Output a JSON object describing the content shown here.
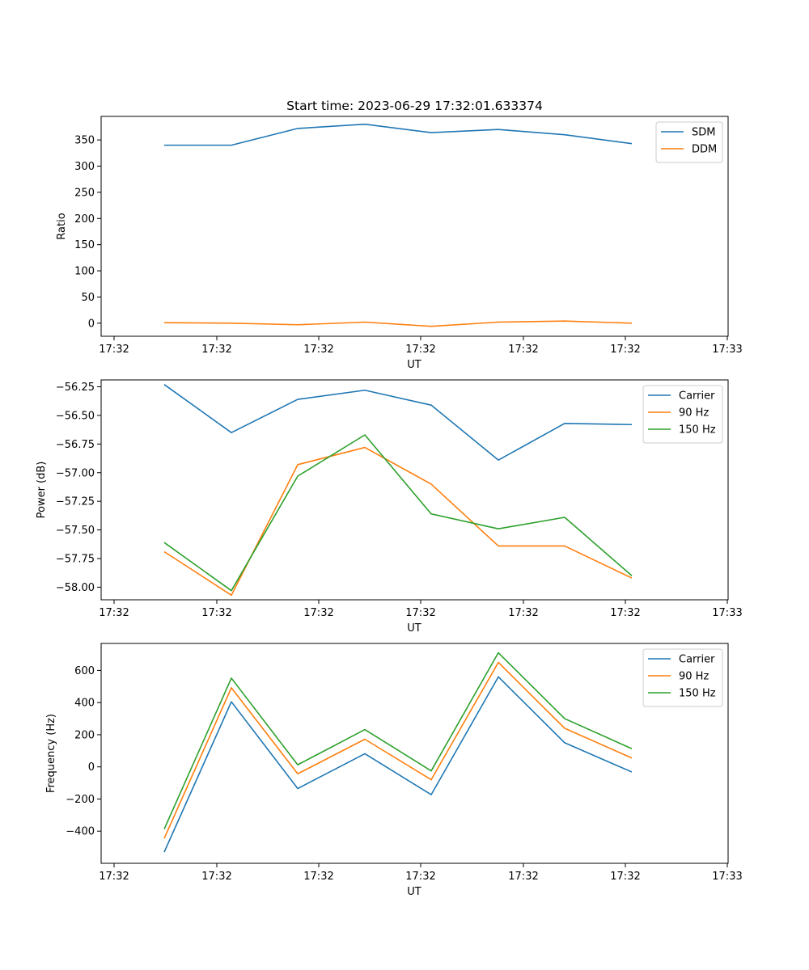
{
  "chart_data": [
    {
      "type": "line",
      "title": "Start time: 2023-06-29 17:32:01.633374",
      "xlabel": "UT",
      "ylabel": "Ratio",
      "x_tick_labels": [
        "17:32",
        "17:32",
        "17:32",
        "17:32",
        "17:32",
        "17:32",
        "17:32"
      ],
      "last_x_tick_label": "17:33",
      "ylim": [
        -25,
        395
      ],
      "yticks": [
        0,
        50,
        100,
        150,
        200,
        250,
        300,
        350
      ],
      "legend": "top-right",
      "series": [
        {
          "name": "SDM",
          "color": "#1f77b4",
          "values": [
            340,
            340,
            372,
            380,
            364,
            370,
            360,
            343
          ]
        },
        {
          "name": "DDM",
          "color": "#ff7f0e",
          "values": [
            1,
            0,
            -3,
            2,
            -6,
            2,
            4,
            0
          ]
        }
      ]
    },
    {
      "type": "line",
      "title": "",
      "xlabel": "UT",
      "ylabel": "Power (dB)",
      "x_tick_labels": [
        "17:32",
        "17:32",
        "17:32",
        "17:32",
        "17:32",
        "17:32",
        "17:32"
      ],
      "last_x_tick_label": "17:33",
      "ylim": [
        -58.11,
        -56.19
      ],
      "yticks": [
        -58.0,
        -57.75,
        -57.5,
        -57.25,
        -57.0,
        -56.75,
        -56.5,
        -56.25
      ],
      "ytick_labels": [
        "−58.00",
        "−57.75",
        "−57.50",
        "−57.25",
        "−57.00",
        "−56.75",
        "−56.50",
        "−56.25"
      ],
      "legend": "top-right",
      "series": [
        {
          "name": "Carrier",
          "color": "#1f77b4",
          "values": [
            -56.23,
            -56.65,
            -56.36,
            -56.28,
            -56.41,
            -56.89,
            -56.57,
            -56.58
          ]
        },
        {
          "name": "90 Hz",
          "color": "#ff7f0e",
          "values": [
            -57.69,
            -58.07,
            -56.93,
            -56.78,
            -57.1,
            -57.64,
            -57.64,
            -57.92
          ]
        },
        {
          "name": "150 Hz",
          "color": "#2ca02c",
          "values": [
            -57.61,
            -58.03,
            -57.03,
            -56.67,
            -57.36,
            -57.49,
            -57.39,
            -57.9
          ]
        }
      ]
    },
    {
      "type": "line",
      "title": "",
      "xlabel": "UT",
      "ylabel": "Frequency (Hz)",
      "x_tick_labels": [
        "17:32",
        "17:32",
        "17:32",
        "17:32",
        "17:32",
        "17:32",
        "17:32"
      ],
      "last_x_tick_label": "17:33",
      "ylim": [
        -600,
        768
      ],
      "yticks": [
        -400,
        -200,
        0,
        200,
        400,
        600
      ],
      "ytick_labels": [
        "−400",
        "−200",
        "0",
        "200",
        "400",
        "600"
      ],
      "legend": "top-right",
      "series": [
        {
          "name": "Carrier",
          "color": "#1f77b4",
          "values": [
            -530,
            405,
            -135,
            82,
            -173,
            560,
            150,
            -32
          ]
        },
        {
          "name": "90 Hz",
          "color": "#ff7f0e",
          "values": [
            -445,
            492,
            -43,
            172,
            -80,
            650,
            240,
            55
          ]
        },
        {
          "name": "150 Hz",
          "color": "#2ca02c",
          "values": [
            -387,
            552,
            13,
            232,
            -25,
            710,
            300,
            113
          ]
        }
      ]
    }
  ]
}
